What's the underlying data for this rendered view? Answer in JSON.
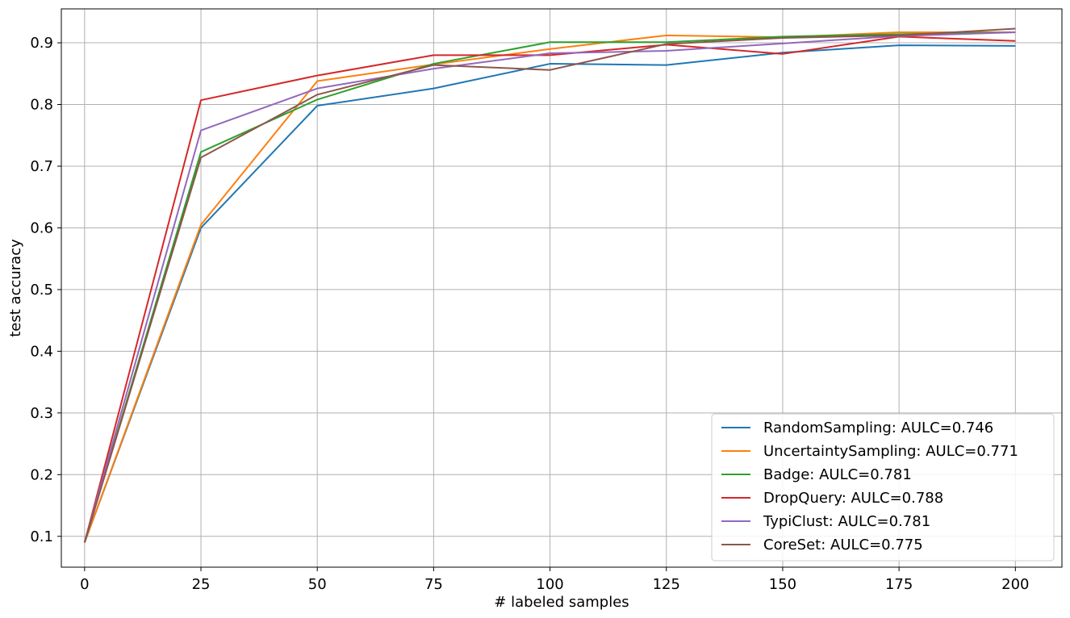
{
  "chart_data": {
    "type": "line",
    "title": "",
    "xlabel": "# labeled samples",
    "ylabel": "test accuracy",
    "x": [
      0,
      25,
      50,
      75,
      100,
      125,
      150,
      175,
      200
    ],
    "xlim": [
      -5,
      210
    ],
    "ylim": [
      0.05,
      0.955
    ],
    "xticks": [
      0,
      25,
      50,
      75,
      100,
      125,
      150,
      175,
      200
    ],
    "yticks": [
      0.1,
      0.2,
      0.3,
      0.4,
      0.5,
      0.6,
      0.7,
      0.8,
      0.9
    ],
    "grid": true,
    "legend_position": "lower-right",
    "series": [
      {
        "name": "RandomSampling: AULC=0.746",
        "color": "#1f77b4",
        "values": [
          0.09,
          0.6,
          0.798,
          0.826,
          0.866,
          0.864,
          0.884,
          0.896,
          0.895
        ]
      },
      {
        "name": "UncertaintySampling: AULC=0.771",
        "color": "#ff7f0e",
        "values": [
          0.09,
          0.605,
          0.838,
          0.865,
          0.89,
          0.912,
          0.909,
          0.917,
          0.917
        ]
      },
      {
        "name": "Badge: AULC=0.781",
        "color": "#2ca02c",
        "values": [
          0.09,
          0.723,
          0.808,
          0.866,
          0.901,
          0.901,
          0.91,
          0.914,
          0.917
        ]
      },
      {
        "name": "DropQuery: AULC=0.788",
        "color": "#d62728",
        "values": [
          0.09,
          0.807,
          0.847,
          0.88,
          0.88,
          0.897,
          0.882,
          0.91,
          0.903
        ]
      },
      {
        "name": "TypiClust: AULC=0.781",
        "color": "#9467bd",
        "values": [
          0.09,
          0.758,
          0.826,
          0.858,
          0.883,
          0.887,
          0.899,
          0.911,
          0.917
        ]
      },
      {
        "name": "CoreSet: AULC=0.775",
        "color": "#8c564b",
        "values": [
          0.09,
          0.714,
          0.816,
          0.864,
          0.856,
          0.898,
          0.908,
          0.912,
          0.923
        ]
      }
    ]
  }
}
